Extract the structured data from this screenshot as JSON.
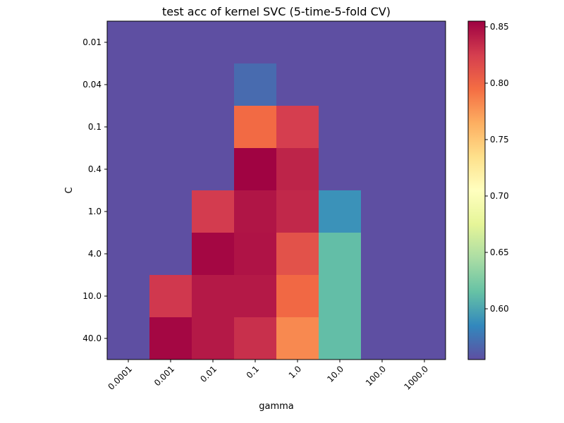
{
  "chart_data": {
    "type": "heatmap",
    "title": "test acc of kernel SVC (5-time-5-fold CV)",
    "xlabel": "gamma",
    "ylabel": "C",
    "x_categories": [
      "0.0001",
      "0.001",
      "0.01",
      "0.1",
      "1.0",
      "10.0",
      "100.0",
      "1000.0"
    ],
    "y_categories": [
      "0.01",
      "0.04",
      "0.1",
      "0.4",
      "1.0",
      "4.0",
      "10.0",
      "40.0"
    ],
    "values": [
      [
        0.555,
        0.555,
        0.555,
        0.555,
        0.555,
        0.555,
        0.555,
        0.555
      ],
      [
        0.555,
        0.555,
        0.555,
        0.57,
        0.555,
        0.555,
        0.555,
        0.555
      ],
      [
        0.555,
        0.555,
        0.555,
        0.797,
        0.825,
        0.555,
        0.555,
        0.555
      ],
      [
        0.555,
        0.555,
        0.555,
        0.854,
        0.838,
        0.555,
        0.555,
        0.555
      ],
      [
        0.555,
        0.555,
        0.826,
        0.845,
        0.836,
        0.59,
        0.555,
        0.555
      ],
      [
        0.555,
        0.555,
        0.852,
        0.846,
        0.812,
        0.613,
        0.555,
        0.555
      ],
      [
        0.555,
        0.828,
        0.843,
        0.843,
        0.798,
        0.613,
        0.555,
        0.555
      ],
      [
        0.555,
        0.852,
        0.843,
        0.832,
        0.782,
        0.613,
        0.555,
        0.555
      ]
    ],
    "colormap": "Spectral_r",
    "vmin": 0.555,
    "vmax": 0.855,
    "colorbar_ticks": [
      "0.60",
      "0.65",
      "0.70",
      "0.75",
      "0.80",
      "0.85"
    ],
    "colorbar_tick_values": [
      0.6,
      0.65,
      0.7,
      0.75,
      0.8,
      0.85
    ],
    "colorbar_position": "right",
    "grid": false
  }
}
